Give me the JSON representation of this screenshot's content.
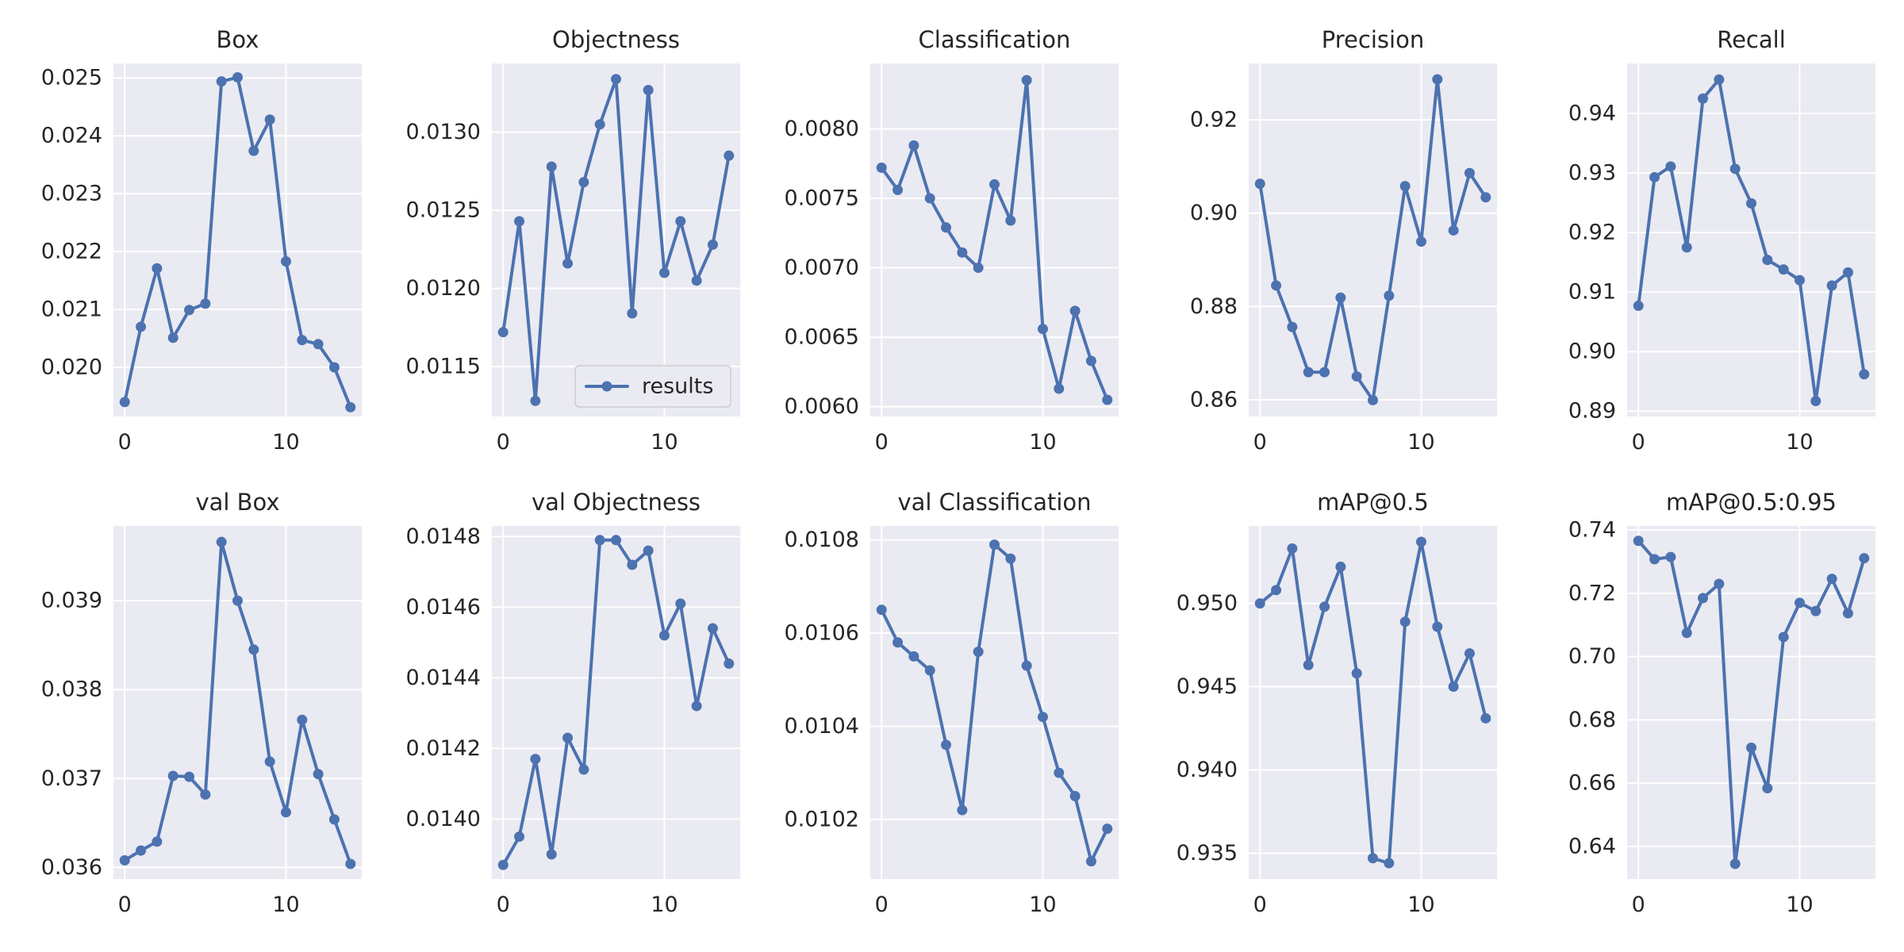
{
  "figure": {
    "background": "#ffffff",
    "axes_facecolor": "#eaeaf2",
    "grid_color": "#ffffff",
    "line_color": "#4c72b0",
    "text_color": "#262626"
  },
  "chart_data": [
    {
      "type": "line",
      "title": "Box",
      "xlabel": "",
      "ylabel": "",
      "grid": true,
      "x": [
        0,
        1,
        2,
        3,
        4,
        5,
        6,
        7,
        8,
        9,
        10,
        11,
        12,
        13,
        14
      ],
      "series": [
        {
          "values": [
            0.0194,
            0.0207,
            0.02171,
            0.02051,
            0.02099,
            0.0211,
            0.02494,
            0.02501,
            0.02374,
            0.02428,
            0.02183,
            0.02047,
            0.0204,
            0.02,
            0.01931
          ]
        }
      ],
      "xlim": [
        -0.7,
        14.7
      ],
      "ylim": [
        0.01915,
        0.02525
      ],
      "xticks": [
        0,
        10
      ],
      "yticks": [
        0.02,
        0.021,
        0.022,
        0.023,
        0.024,
        0.025
      ],
      "ytick_labels": [
        "0.020",
        "0.021",
        "0.022",
        "0.023",
        "0.024",
        "0.025"
      ]
    },
    {
      "type": "line",
      "title": "Objectness",
      "xlabel": "",
      "ylabel": "",
      "grid": true,
      "legend": {
        "entries": [
          "results"
        ],
        "placement": "lower right"
      },
      "x": [
        0,
        1,
        2,
        3,
        4,
        5,
        6,
        7,
        8,
        9,
        10,
        11,
        12,
        13,
        14
      ],
      "series": [
        {
          "name": "results",
          "values": [
            0.01172,
            0.01243,
            0.01128,
            0.01278,
            0.01216,
            0.01268,
            0.01305,
            0.01334,
            0.01184,
            0.01327,
            0.0121,
            0.01243,
            0.01205,
            0.01228,
            0.01285
          ]
        }
      ],
      "xlim": [
        -0.7,
        14.7
      ],
      "ylim": [
        0.01118,
        0.01344
      ],
      "xticks": [
        0,
        10
      ],
      "yticks": [
        0.0115,
        0.012,
        0.0125,
        0.013
      ],
      "ytick_labels": [
        "0.0115",
        "0.0120",
        "0.0125",
        "0.0130"
      ]
    },
    {
      "type": "line",
      "title": "Classification",
      "xlabel": "",
      "ylabel": "",
      "grid": true,
      "x": [
        0,
        1,
        2,
        3,
        4,
        5,
        6,
        7,
        8,
        9,
        10,
        11,
        12,
        13,
        14
      ],
      "series": [
        {
          "values": [
            0.00772,
            0.00756,
            0.00788,
            0.0075,
            0.00729,
            0.00711,
            0.007,
            0.0076,
            0.00734,
            0.00835,
            0.00656,
            0.00613,
            0.00669,
            0.00633,
            0.00605
          ]
        }
      ],
      "xlim": [
        -0.7,
        14.7
      ],
      "ylim": [
        0.00593,
        0.00847
      ],
      "xticks": [
        0,
        10
      ],
      "yticks": [
        0.006,
        0.0065,
        0.007,
        0.0075,
        0.008
      ],
      "ytick_labels": [
        "0.0060",
        "0.0065",
        "0.0070",
        "0.0075",
        "0.0080"
      ]
    },
    {
      "type": "line",
      "title": "Precision",
      "xlabel": "",
      "ylabel": "",
      "grid": true,
      "x": [
        0,
        1,
        2,
        3,
        4,
        5,
        6,
        7,
        8,
        9,
        10,
        11,
        12,
        13,
        14
      ],
      "series": [
        {
          "values": [
            0.9063,
            0.8845,
            0.8756,
            0.8659,
            0.8659,
            0.8819,
            0.865,
            0.8599,
            0.8823,
            0.9058,
            0.8939,
            0.9287,
            0.8963,
            0.9086,
            0.9034
          ]
        }
      ],
      "xlim": [
        -0.7,
        14.7
      ],
      "ylim": [
        0.8564,
        0.9321
      ],
      "xticks": [
        0,
        10
      ],
      "yticks": [
        0.86,
        0.88,
        0.9,
        0.92
      ],
      "ytick_labels": [
        "0.86",
        "0.88",
        "0.90",
        "0.92"
      ]
    },
    {
      "type": "line",
      "title": "Recall",
      "xlabel": "",
      "ylabel": "",
      "grid": true,
      "x": [
        0,
        1,
        2,
        3,
        4,
        5,
        6,
        7,
        8,
        9,
        10,
        11,
        12,
        13,
        14
      ],
      "series": [
        {
          "values": [
            0.9077,
            0.9293,
            0.9311,
            0.9175,
            0.9425,
            0.9457,
            0.9307,
            0.9249,
            0.9154,
            0.9138,
            0.912,
            0.8917,
            0.9111,
            0.9133,
            0.8962
          ]
        }
      ],
      "xlim": [
        -0.7,
        14.7
      ],
      "ylim": [
        0.8891,
        0.9484
      ],
      "xticks": [
        0,
        10
      ],
      "yticks": [
        0.89,
        0.9,
        0.91,
        0.92,
        0.93,
        0.94
      ],
      "ytick_labels": [
        "0.89",
        "0.90",
        "0.91",
        "0.92",
        "0.93",
        "0.94"
      ]
    },
    {
      "type": "line",
      "title": "val Box",
      "xlabel": "",
      "ylabel": "",
      "grid": true,
      "x": [
        0,
        1,
        2,
        3,
        4,
        5,
        6,
        7,
        8,
        9,
        10,
        11,
        12,
        13,
        14
      ],
      "series": [
        {
          "values": [
            0.03608,
            0.03619,
            0.03629,
            0.03703,
            0.03702,
            0.03682,
            0.03966,
            0.039,
            0.03845,
            0.03719,
            0.03662,
            0.03766,
            0.03705,
            0.03654,
            0.03604
          ]
        }
      ],
      "xlim": [
        -0.7,
        14.7
      ],
      "ylim": [
        0.03587,
        0.03984
      ],
      "xticks": [
        0,
        10
      ],
      "yticks": [
        0.036,
        0.037,
        0.038,
        0.039
      ],
      "ytick_labels": [
        "0.036",
        "0.037",
        "0.038",
        "0.039"
      ]
    },
    {
      "type": "line",
      "title": "val Objectness",
      "xlabel": "",
      "ylabel": "",
      "grid": true,
      "x": [
        0,
        1,
        2,
        3,
        4,
        5,
        6,
        7,
        8,
        9,
        10,
        11,
        12,
        13,
        14
      ],
      "series": [
        {
          "values": [
            0.01387,
            0.01395,
            0.01417,
            0.0139,
            0.01423,
            0.01414,
            0.01479,
            0.01479,
            0.01472,
            0.01476,
            0.01452,
            0.01461,
            0.01432,
            0.01454,
            0.01444
          ]
        }
      ],
      "xlim": [
        -0.7,
        14.7
      ],
      "ylim": [
        0.01383,
        0.01483
      ],
      "xticks": [
        0,
        10
      ],
      "yticks": [
        0.014,
        0.0142,
        0.0144,
        0.0146,
        0.0148
      ],
      "ytick_labels": [
        "0.0140",
        "0.0142",
        "0.0144",
        "0.0146",
        "0.0148"
      ]
    },
    {
      "type": "line",
      "title": "val Classification",
      "xlabel": "",
      "ylabel": "",
      "grid": true,
      "x": [
        0,
        1,
        2,
        3,
        4,
        5,
        6,
        7,
        8,
        9,
        10,
        11,
        12,
        13,
        14
      ],
      "series": [
        {
          "values": [
            0.01065,
            0.01058,
            0.01055,
            0.01052,
            0.01036,
            0.01022,
            0.01056,
            0.01079,
            0.01076,
            0.01053,
            0.01042,
            0.0103,
            0.01025,
            0.01011,
            0.01018
          ]
        }
      ],
      "xlim": [
        -0.7,
        14.7
      ],
      "ylim": [
        0.010072,
        0.01083
      ],
      "xticks": [
        0,
        10
      ],
      "yticks": [
        0.0102,
        0.0104,
        0.0106,
        0.0108
      ],
      "ytick_labels": [
        "0.0102",
        "0.0104",
        "0.0106",
        "0.0108"
      ]
    },
    {
      "type": "line",
      "title": "mAP@0.5",
      "xlabel": "",
      "ylabel": "",
      "grid": true,
      "x": [
        0,
        1,
        2,
        3,
        4,
        5,
        6,
        7,
        8,
        9,
        10,
        11,
        12,
        13,
        14
      ],
      "series": [
        {
          "values": [
            0.95,
            0.9508,
            0.9533,
            0.9463,
            0.9498,
            0.9522,
            0.9458,
            0.9347,
            0.9344,
            0.9489,
            0.9537,
            0.9486,
            0.945,
            0.947,
            0.9431
          ]
        }
      ],
      "xlim": [
        -0.7,
        14.7
      ],
      "ylim": [
        0.93345,
        0.95465
      ],
      "xticks": [
        0,
        10
      ],
      "yticks": [
        0.935,
        0.94,
        0.945,
        0.95
      ],
      "ytick_labels": [
        "0.935",
        "0.940",
        "0.945",
        "0.950"
      ]
    },
    {
      "type": "line",
      "title": "mAP@0.5:0.95",
      "xlabel": "",
      "ylabel": "",
      "grid": true,
      "x": [
        0,
        1,
        2,
        3,
        4,
        5,
        6,
        7,
        8,
        9,
        10,
        11,
        12,
        13,
        14
      ],
      "series": [
        {
          "values": [
            0.7366,
            0.7308,
            0.7315,
            0.7075,
            0.7185,
            0.723,
            0.6345,
            0.6712,
            0.6584,
            0.7062,
            0.717,
            0.7144,
            0.7246,
            0.7137,
            0.7311
          ]
        }
      ],
      "xlim": [
        -0.7,
        14.7
      ],
      "ylim": [
        0.6297,
        0.7413
      ],
      "xticks": [
        0,
        10
      ],
      "yticks": [
        0.64,
        0.66,
        0.68,
        0.7,
        0.72,
        0.74
      ],
      "ytick_labels": [
        "0.64",
        "0.66",
        "0.68",
        "0.70",
        "0.72",
        "0.74"
      ]
    }
  ]
}
